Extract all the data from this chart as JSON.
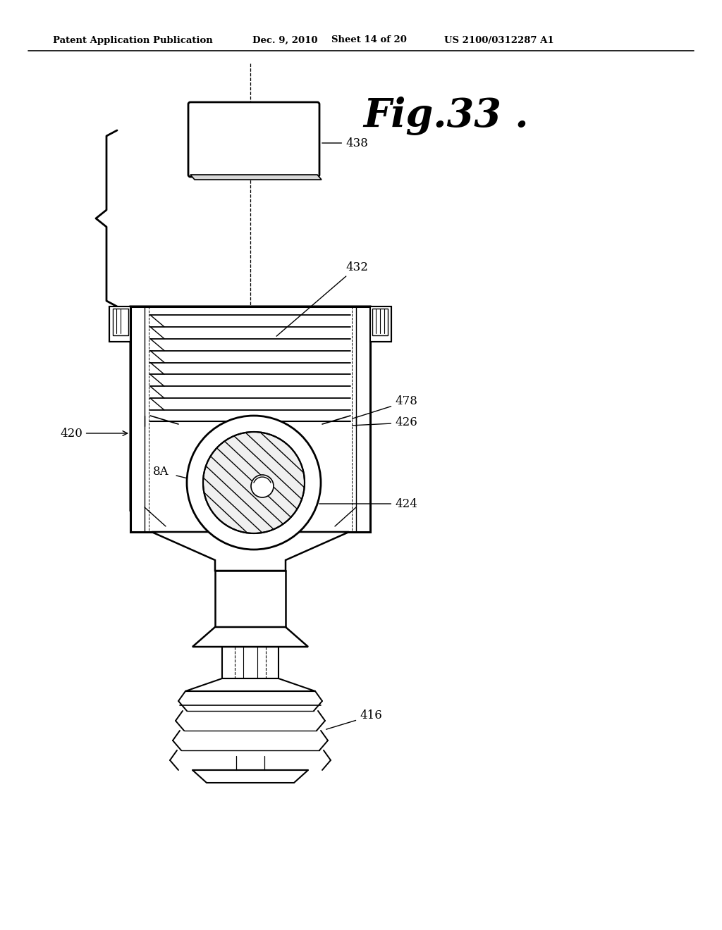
{
  "bg_color": "#ffffff",
  "header_text": "Patent Application Publication",
  "header_date": "Dec. 9, 2010",
  "header_sheet": "Sheet 14 of 20",
  "header_patent": "US 2100/0312287 A1",
  "fig_label": "Fig.33 .",
  "line_color": "#000000",
  "lw_main": 1.8,
  "lw_thin": 1.0,
  "lw_thick": 2.2
}
